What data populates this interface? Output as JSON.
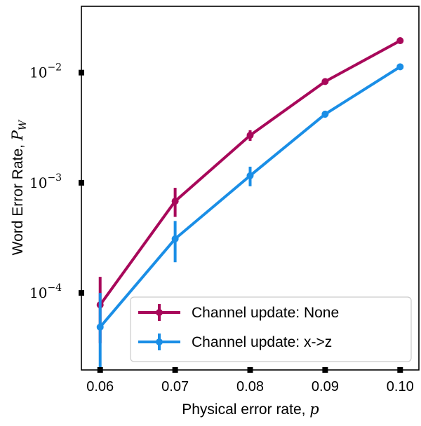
{
  "chart_data": {
    "type": "line",
    "xlabel": "Physical error rate, ",
    "xlabel_var": "p",
    "ylabel": "Word Error Rate, ",
    "ylabel_var": "P",
    "ylabel_sub": "W",
    "yscale": "log",
    "xlim": [
      0.0575,
      0.1025
    ],
    "ylim": [
      2e-05,
      0.04
    ],
    "xticks": [
      0.06,
      0.07,
      0.08,
      0.09,
      0.1
    ],
    "xtick_labels": [
      "0.06",
      "0.07",
      "0.08",
      "0.09",
      "0.10"
    ],
    "yticks": [
      0.0001,
      0.001,
      0.01
    ],
    "ytick_base": "10",
    "ytick_exponents": [
      "−4",
      "−3",
      "−2"
    ],
    "legend_position": "lower-right",
    "grid": false,
    "series": [
      {
        "name": "Channel update: None",
        "color": "#a8085a",
        "x": [
          0.06,
          0.07,
          0.08,
          0.09,
          0.1
        ],
        "y": [
          7.8e-05,
          0.00068,
          0.0027,
          0.0083,
          0.0195
        ],
        "yerr_low": [
          3.5e-05,
          0.00049,
          0.0024,
          0.008,
          0.0192
        ],
        "yerr_high": [
          0.00014,
          0.0009,
          0.003,
          0.0086,
          0.0198
        ]
      },
      {
        "name": "Channel update: x->z",
        "color": "#1a8ee6",
        "x": [
          0.06,
          0.07,
          0.08,
          0.09,
          0.1
        ],
        "y": [
          4.9e-05,
          0.00031,
          0.00116,
          0.0042,
          0.0113
        ],
        "yerr_low": [
          2e-05,
          0.00019,
          0.00093,
          0.0039,
          0.011
        ],
        "yerr_high": [
          0.0001,
          0.00045,
          0.0014,
          0.0045,
          0.0116
        ]
      }
    ]
  }
}
